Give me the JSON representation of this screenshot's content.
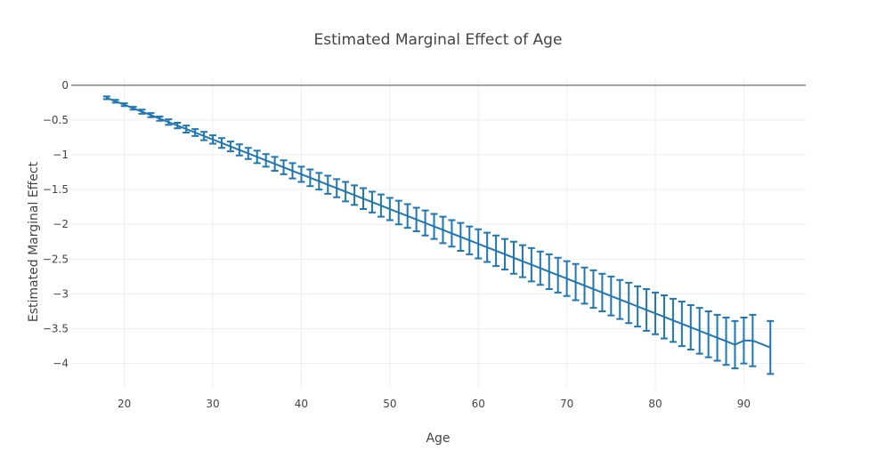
{
  "chart_data": {
    "type": "line",
    "title": "Estimated Marginal Effect of Age",
    "xlabel": "Age",
    "ylabel": "Estimated Marginal Effect",
    "xlim": [
      14,
      97
    ],
    "ylim": [
      -4.35,
      0.1
    ],
    "x_ticks": [
      20,
      30,
      40,
      50,
      60,
      70,
      80,
      90
    ],
    "y_ticks": [
      0,
      -0.5,
      -1,
      -1.5,
      -2,
      -2.5,
      -3,
      -3.5,
      -4
    ],
    "y_tick_labels": [
      "0",
      "−0.5",
      "−1",
      "−1.5",
      "−2",
      "−2.5",
      "−3",
      "−3.5",
      "−4"
    ],
    "grid": true,
    "colors": {
      "series": "#1f77b4",
      "zero_line": "#444444",
      "grid": "#eeeeee"
    },
    "series": [
      {
        "x": [
          18,
          19,
          20,
          21,
          22,
          23,
          24,
          25,
          26,
          27,
          28,
          29,
          30,
          31,
          32,
          33,
          34,
          35,
          36,
          37,
          38,
          39,
          40,
          41,
          42,
          43,
          44,
          45,
          46,
          47,
          48,
          49,
          50,
          51,
          52,
          53,
          54,
          55,
          56,
          57,
          58,
          59,
          60,
          61,
          62,
          63,
          64,
          65,
          66,
          67,
          68,
          69,
          70,
          71,
          72,
          73,
          74,
          75,
          76,
          77,
          78,
          79,
          80,
          81,
          82,
          83,
          84,
          85,
          86,
          87,
          88,
          89,
          90,
          91,
          93
        ],
        "y": [
          -0.18,
          -0.23,
          -0.28,
          -0.33,
          -0.38,
          -0.43,
          -0.48,
          -0.53,
          -0.58,
          -0.63,
          -0.68,
          -0.73,
          -0.78,
          -0.83,
          -0.88,
          -0.93,
          -0.98,
          -1.03,
          -1.08,
          -1.13,
          -1.18,
          -1.23,
          -1.28,
          -1.33,
          -1.38,
          -1.43,
          -1.48,
          -1.53,
          -1.58,
          -1.63,
          -1.68,
          -1.73,
          -1.78,
          -1.83,
          -1.88,
          -1.93,
          -1.98,
          -2.03,
          -2.08,
          -2.13,
          -2.18,
          -2.23,
          -2.28,
          -2.33,
          -2.38,
          -2.43,
          -2.48,
          -2.53,
          -2.58,
          -2.63,
          -2.68,
          -2.73,
          -2.78,
          -2.83,
          -2.88,
          -2.93,
          -2.98,
          -3.03,
          -3.08,
          -3.13,
          -3.18,
          -3.23,
          -3.28,
          -3.33,
          -3.38,
          -3.43,
          -3.48,
          -3.53,
          -3.58,
          -3.63,
          -3.68,
          -3.73,
          -3.67,
          -3.67,
          -3.77
        ],
        "error": [
          0.02,
          0.02,
          0.02,
          0.02,
          0.03,
          0.03,
          0.03,
          0.04,
          0.04,
          0.05,
          0.05,
          0.06,
          0.06,
          0.07,
          0.07,
          0.08,
          0.08,
          0.09,
          0.09,
          0.1,
          0.1,
          0.11,
          0.11,
          0.12,
          0.12,
          0.13,
          0.13,
          0.14,
          0.14,
          0.15,
          0.15,
          0.16,
          0.16,
          0.17,
          0.17,
          0.17,
          0.18,
          0.18,
          0.19,
          0.19,
          0.2,
          0.2,
          0.21,
          0.21,
          0.22,
          0.22,
          0.23,
          0.23,
          0.24,
          0.24,
          0.25,
          0.25,
          0.25,
          0.26,
          0.26,
          0.27,
          0.27,
          0.28,
          0.28,
          0.29,
          0.29,
          0.3,
          0.3,
          0.31,
          0.31,
          0.32,
          0.32,
          0.33,
          0.33,
          0.33,
          0.34,
          0.34,
          0.33,
          0.37,
          0.38
        ]
      }
    ]
  }
}
